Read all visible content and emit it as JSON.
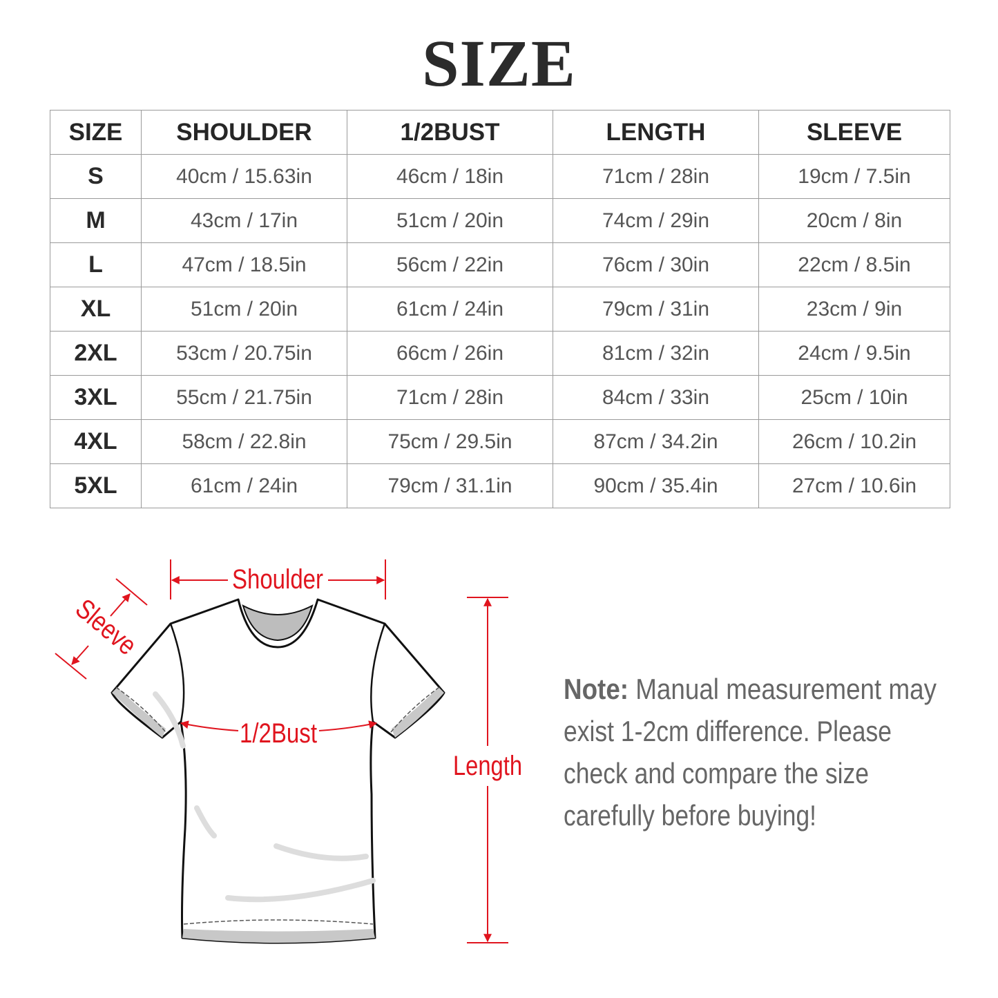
{
  "title": "SIZE",
  "table": {
    "headers": [
      "SIZE",
      "SHOULDER",
      "1/2BUST",
      "LENGTH",
      "SLEEVE"
    ],
    "rows": [
      [
        "S",
        "40cm / 15.63in",
        "46cm / 18in",
        "71cm / 28in",
        "19cm / 7.5in"
      ],
      [
        "M",
        "43cm / 17in",
        "51cm / 20in",
        "74cm / 29in",
        "20cm / 8in"
      ],
      [
        "L",
        "47cm / 18.5in",
        "56cm / 22in",
        "76cm / 30in",
        "22cm / 8.5in"
      ],
      [
        "XL",
        "51cm / 20in",
        "61cm / 24in",
        "79cm / 31in",
        "23cm / 9in"
      ],
      [
        "2XL",
        "53cm / 20.75in",
        "66cm / 26in",
        "81cm / 32in",
        "24cm / 9.5in"
      ],
      [
        "3XL",
        "55cm / 21.75in",
        "71cm / 28in",
        "84cm / 33in",
        "25cm / 10in"
      ],
      [
        "4XL",
        "58cm / 22.8in",
        "75cm / 29.5in",
        "87cm / 34.2in",
        "26cm / 10.2in"
      ],
      [
        "5XL",
        "61cm / 24in",
        "79cm / 31.1in",
        "90cm / 35.4in",
        "27cm / 10.6in"
      ]
    ]
  },
  "diagram": {
    "shoulder_label": "Shoulder",
    "sleeve_label": "Sleeve",
    "bust_label": "1/2Bust",
    "length_label": "Length",
    "accent_color": "#e0141e"
  },
  "note": {
    "label": "Note:",
    "lines": [
      " Manual measurement may",
      "exist 1-2cm difference. Please",
      "check and compare the size",
      "carefully before buying!"
    ]
  }
}
